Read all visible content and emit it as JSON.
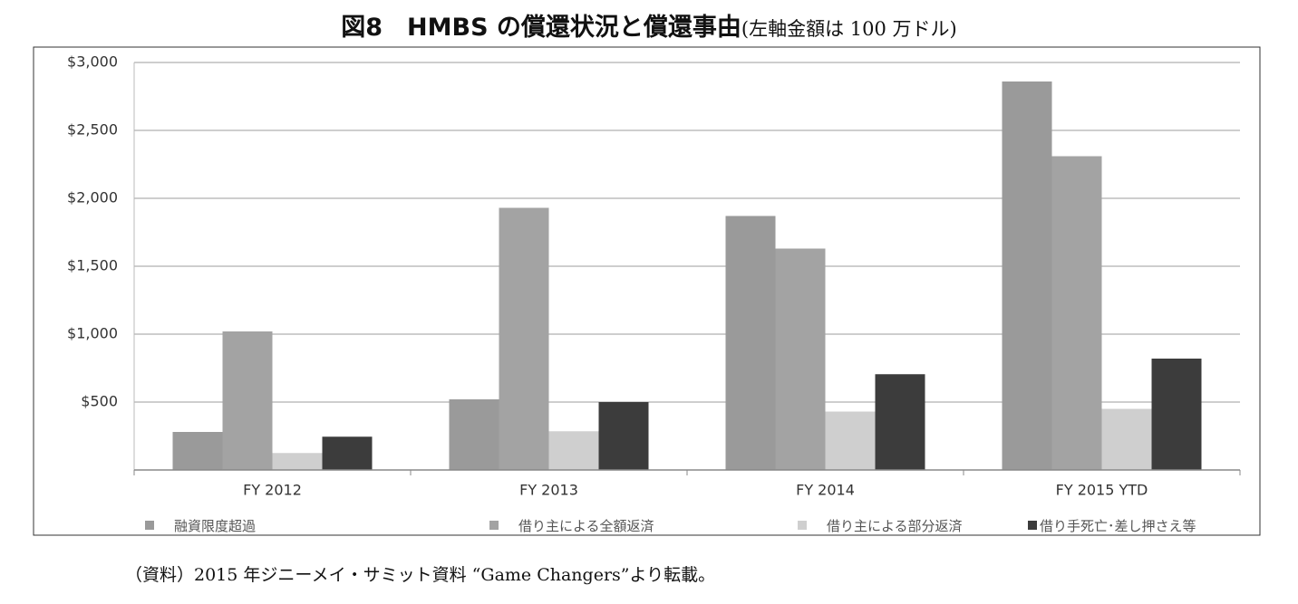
{
  "chart_data": {
    "type": "bar",
    "title": "図8　HMBS の償還状況と償還事由",
    "subtitle": "(左軸金額は 100 万ドル)",
    "note": "（資料）2015 年ジニーメイ・サミット資料 “Game Changers”より転載。",
    "categories": [
      "FY 2012",
      "FY 2013",
      "FY 2014",
      "FY 2015 YTD"
    ],
    "series": [
      {
        "name": "融資限度超過",
        "color": "#9a9a9a",
        "values": [
          280,
          520,
          1870,
          2860
        ]
      },
      {
        "name": "借り主による全額返済",
        "color": "#a3a3a3",
        "values": [
          1020,
          1930,
          1630,
          2310
        ]
      },
      {
        "name": "借り主による部分返済",
        "color": "#cfcfcf",
        "values": [
          125,
          285,
          430,
          450
        ]
      },
      {
        "name": "借り手死亡･差し押さえ等",
        "color": "#3c3c3c",
        "values": [
          245,
          500,
          705,
          820
        ]
      }
    ],
    "ylim": [
      0,
      3000
    ],
    "yticks": [
      {
        "value": 500,
        "label": "$500"
      },
      {
        "value": 1000,
        "label": "$1,000"
      },
      {
        "value": 1500,
        "label": "$1,500"
      },
      {
        "value": 2000,
        "label": "$2,000"
      },
      {
        "value": 2500,
        "label": "$2,500"
      },
      {
        "value": 3000,
        "label": "$3,000"
      }
    ],
    "grid": true,
    "legend": "bottom"
  }
}
